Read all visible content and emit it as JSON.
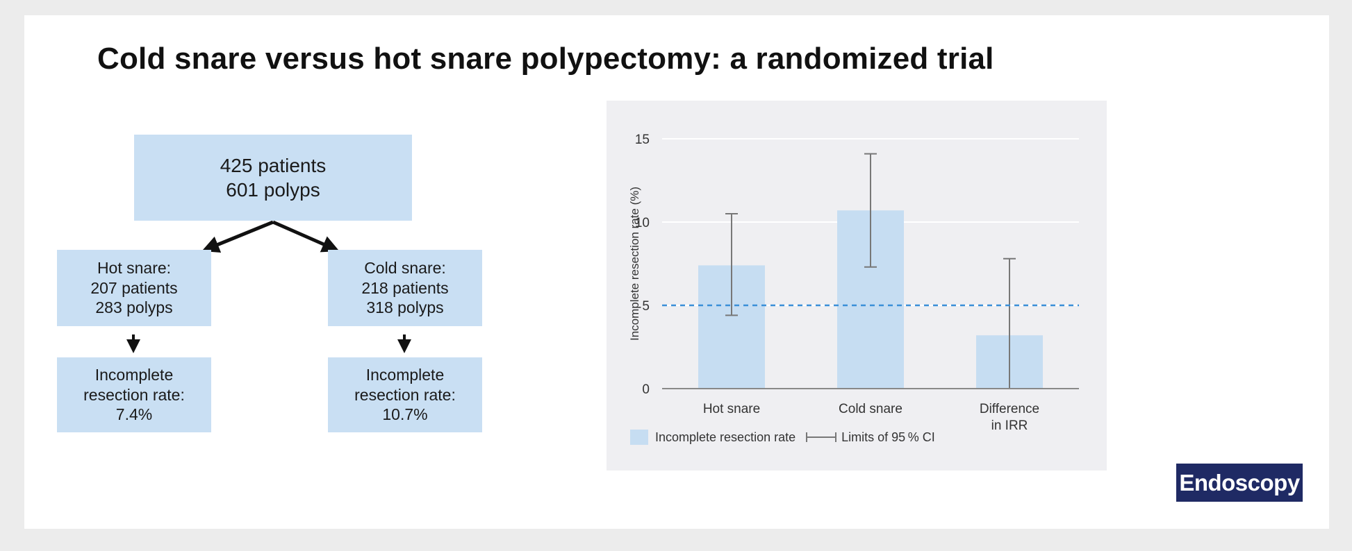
{
  "title": "Cold snare versus hot snare polypectomy: a randomized trial",
  "flow": {
    "top": {
      "line1": "425 patients",
      "line2": "601 polyps"
    },
    "hot": {
      "line1": "Hot snare:",
      "line2": "207 patients",
      "line3": "283 polyps"
    },
    "cold": {
      "line1": "Cold snare:",
      "line2": "218 patients",
      "line3": "318 polyps"
    },
    "hot_rate": {
      "line1": "Incomplete",
      "line2": "resection rate:",
      "line3": "7.4%"
    },
    "cold_rate": {
      "line1": "Incomplete",
      "line2": "resection rate:",
      "line3": "10.7%"
    }
  },
  "chart_data": {
    "type": "bar",
    "categories": [
      [
        "Hot snare"
      ],
      [
        "Cold snare"
      ],
      [
        "Difference",
        "in IRR"
      ]
    ],
    "values": [
      7.4,
      10.7,
      3.2
    ],
    "ci": [
      [
        4.4,
        10.5
      ],
      [
        7.3,
        14.1
      ],
      [
        0,
        7.8
      ]
    ],
    "ylabel": "Incomplete resection rate (%)",
    "ylim": [
      0,
      15
    ],
    "yticks": [
      0,
      5,
      10,
      15
    ],
    "reference_line": 5,
    "grid": true,
    "legend": {
      "position": "bottom-left",
      "bar_label": "Incomplete resection rate",
      "ci_label": "Limits of 95 % CI"
    },
    "colors": {
      "bar": "#c6ddf2",
      "errorbar": "#777777",
      "reference": "#3a8fd8",
      "grid": "#ffffff",
      "axis": "#888888"
    }
  },
  "brand": {
    "label": "Endoscopy",
    "color": "#1f2a64"
  }
}
